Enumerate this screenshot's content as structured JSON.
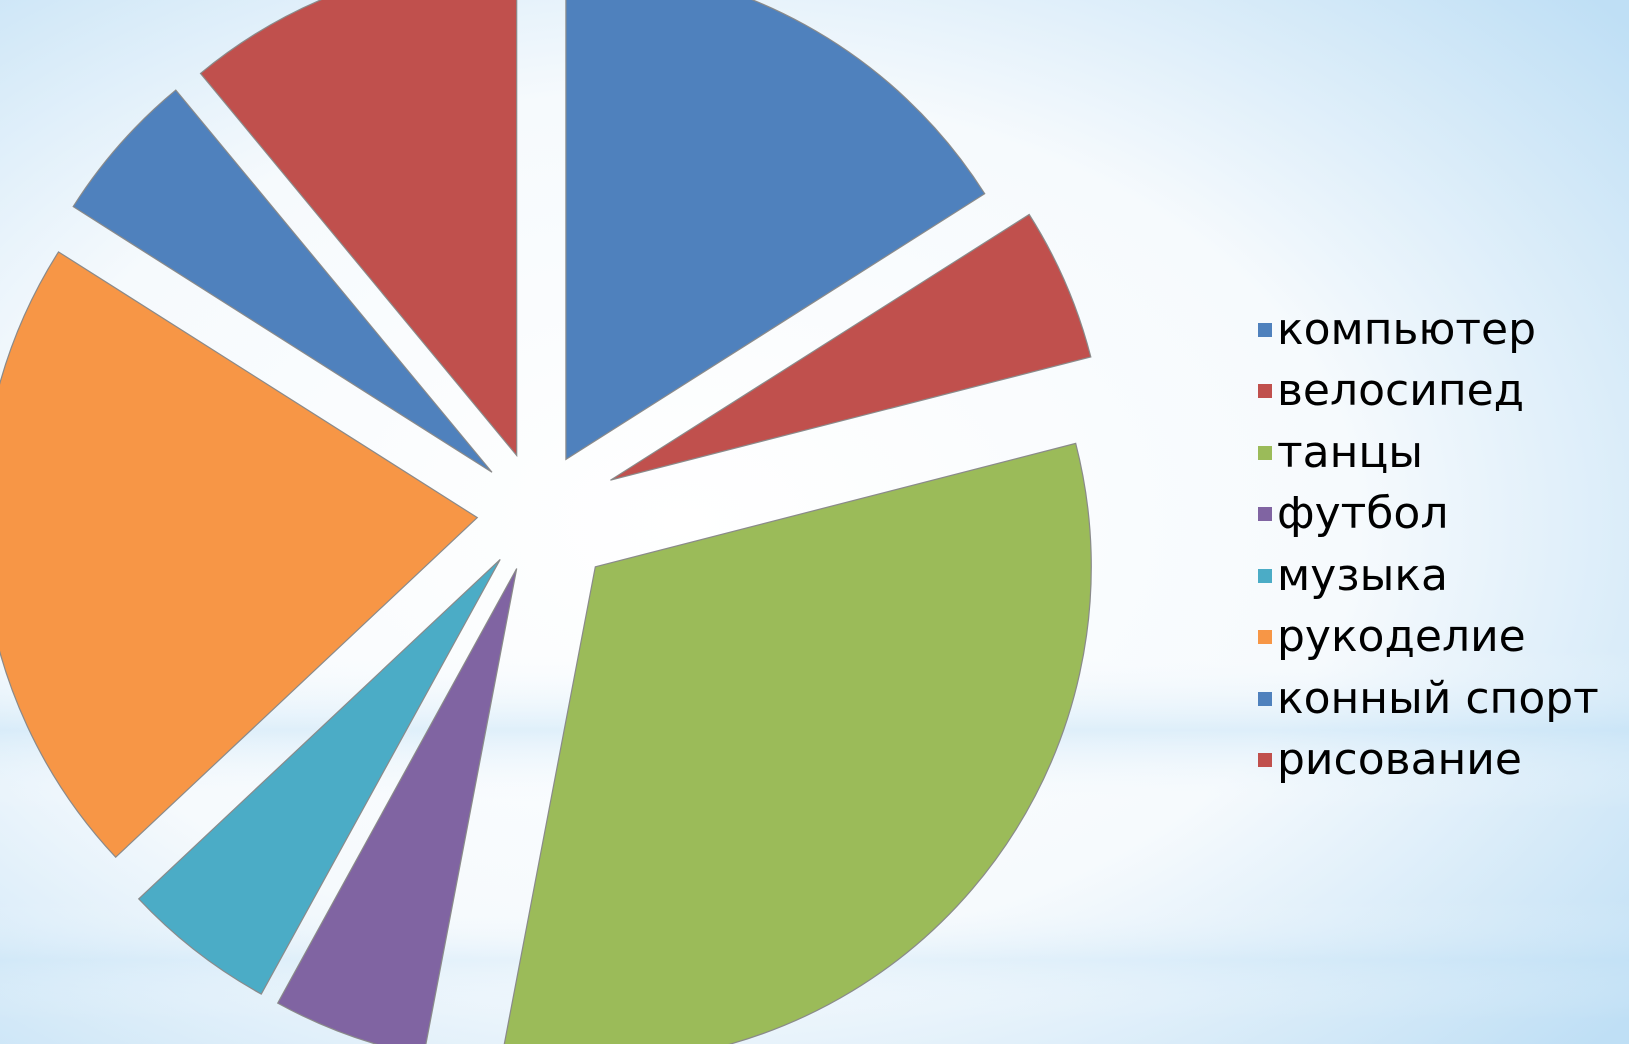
{
  "chart_data": {
    "type": "pie",
    "exploded": true,
    "categories": [
      "компьютер",
      "велосипед",
      "танцы",
      "футбол",
      "музыка",
      "рукоделие",
      "конный спорт",
      "рисование"
    ],
    "values": [
      16,
      5,
      32,
      5,
      5,
      21,
      5,
      11
    ],
    "colors": [
      "#4F81BD",
      "#C0504D",
      "#9BBB59",
      "#8064A2",
      "#4BACC6",
      "#F79646",
      "#4F81BD",
      "#C0504D"
    ],
    "legend_position": "right",
    "title": ""
  }
}
